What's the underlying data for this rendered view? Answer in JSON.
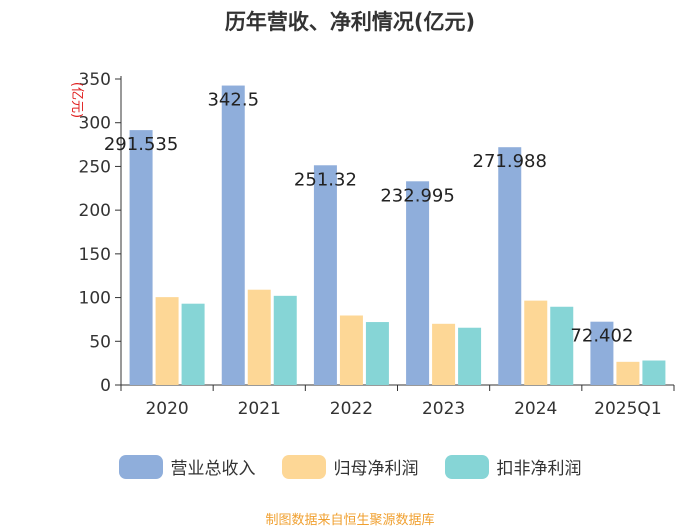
{
  "chart_data": {
    "type": "bar",
    "title": "历年营收、净利情况(亿元)",
    "unit": "(亿元)",
    "categories": [
      "2020",
      "2021",
      "2022",
      "2023",
      "2024",
      "2025Q1"
    ],
    "series": [
      {
        "name": "营业总收入",
        "color": "#8faedb",
        "values": [
          291.535,
          342.5,
          251.32,
          232.995,
          271.988,
          72.402
        ]
      },
      {
        "name": "归母净利润",
        "color": "#fdd796",
        "values": [
          100.5,
          109,
          79.5,
          70,
          96.5,
          26.5
        ]
      },
      {
        "name": "扣非净利润",
        "color": "#86d5d6",
        "values": [
          93,
          102,
          72,
          65.5,
          89.5,
          28
        ]
      }
    ],
    "data_labels": [
      "291.535",
      "342.5",
      "251.32",
      "232.995",
      "271.988",
      "72.402"
    ],
    "yticks": [
      0,
      50,
      100,
      150,
      200,
      250,
      300,
      350
    ],
    "ylim": [
      0,
      350
    ],
    "xlabel": "",
    "ylabel": "(亿元)",
    "legend_position": "bottom"
  },
  "source": "制图数据来自恒生聚源数据库"
}
